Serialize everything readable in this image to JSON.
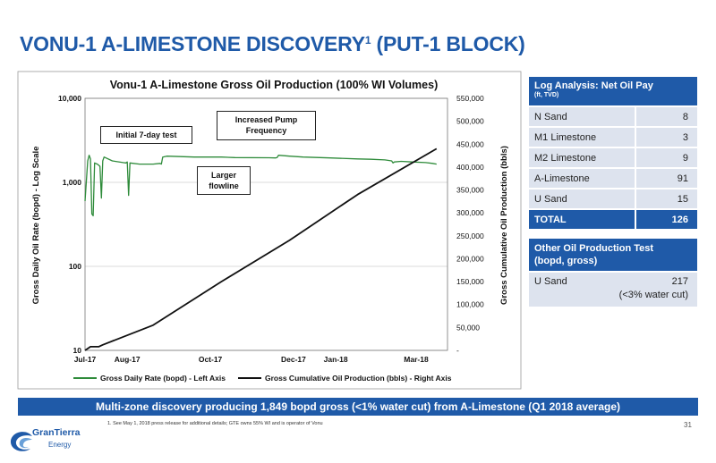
{
  "slide": {
    "title": "VONU-1 A-LIMESTONE DISCOVERY",
    "title_sup": "1",
    "title_tail": " (PUT-1 BLOCK)",
    "banner": "Multi-zone discovery producing 1,849 bopd gross (<1% water cut) from A-Limestone (Q1 2018 average)",
    "footnote": "1.  See May 1, 2018 press release for additional details; GTE owns 55% WI and is operator of Vonu",
    "page_number": "31",
    "logo_text": "GranTierra",
    "logo_sub": "Energy",
    "brand_color": "#1f5aa8"
  },
  "log_table": {
    "header": "Log Analysis: Net Oil Pay",
    "subheader": "(ft, TVD)",
    "rows": [
      {
        "name": "N Sand",
        "value": "8"
      },
      {
        "name": "M1 Limestone",
        "value": "3"
      },
      {
        "name": "M2 Limestone",
        "value": "9"
      },
      {
        "name": "A-Limestone",
        "value": "91"
      },
      {
        "name": "U Sand",
        "value": "15"
      }
    ],
    "total_label": "TOTAL",
    "total_value": "126"
  },
  "test_table": {
    "header_line1": "Other Oil Production Test",
    "header_line2": "(bopd, gross)",
    "row_name": "U Sand",
    "row_value": "217",
    "row_note": "(<3% water cut)"
  },
  "annotations": {
    "initial": "Initial 7-day test",
    "pump_line1": "Increased Pump",
    "pump_line2": "Frequency",
    "flow_line1": "Larger",
    "flow_line2": "flowline"
  },
  "chart_data": {
    "type": "line",
    "title": "Vonu-1 A-Limestone Gross Oil Production (100% WI Volumes)",
    "ylabel_left": "Gross Daily Oil Rate (bopd) - Log Scale",
    "ylabel_right": "Gross Cumulative Oil Production (bbls)",
    "left_scale": "log",
    "left_ylim": [
      10,
      10000
    ],
    "left_ticks": [
      "10",
      "100",
      "1,000",
      "10,000"
    ],
    "right_ylim": [
      0,
      550000
    ],
    "right_ticks": [
      "-",
      "50,000",
      "100,000",
      "150,000",
      "200,000",
      "250,000",
      "300,000",
      "350,000",
      "400,000",
      "450,000",
      "500,000",
      "550,000"
    ],
    "x_ticks": [
      "Jul-17",
      "Aug-17",
      "Oct-17",
      "Dec-17",
      "Jan-18",
      "Mar-18"
    ],
    "x_tick_days": [
      0,
      31,
      92,
      153,
      184,
      243
    ],
    "grid": true,
    "legend_position": "bottom",
    "series": [
      {
        "name": "Gross Daily Rate (bopd) - Left Axis",
        "axis": "left",
        "color": "#2e8b3a",
        "points": [
          [
            0,
            600
          ],
          [
            2,
            1800
          ],
          [
            3,
            2100
          ],
          [
            4,
            1900
          ],
          [
            5,
            420
          ],
          [
            6,
            400
          ],
          [
            7,
            1700
          ],
          [
            9,
            1650
          ],
          [
            10,
            1600
          ],
          [
            11,
            1550
          ],
          [
            12,
            650
          ],
          [
            13,
            1800
          ],
          [
            14,
            2000
          ],
          [
            20,
            1800
          ],
          [
            28,
            1720
          ],
          [
            30,
            1700
          ],
          [
            31,
            1750
          ],
          [
            32,
            700
          ],
          [
            33,
            1700
          ],
          [
            40,
            1650
          ],
          [
            50,
            1650
          ],
          [
            55,
            1680
          ],
          [
            56,
            1650
          ],
          [
            57,
            2000
          ],
          [
            60,
            2050
          ],
          [
            80,
            2000
          ],
          [
            100,
            2000
          ],
          [
            110,
            1970
          ],
          [
            135,
            1960
          ],
          [
            140,
            1950
          ],
          [
            141,
            1980
          ],
          [
            142,
            2100
          ],
          [
            150,
            2050
          ],
          [
            160,
            2000
          ],
          [
            180,
            1950
          ],
          [
            200,
            1900
          ],
          [
            210,
            1880
          ],
          [
            220,
            1850
          ],
          [
            225,
            1800
          ],
          [
            226,
            1700
          ],
          [
            227,
            1750
          ],
          [
            232,
            1780
          ],
          [
            240,
            1750
          ],
          [
            250,
            1720
          ],
          [
            255,
            1680
          ],
          [
            258,
            1650
          ]
        ]
      },
      {
        "name": "Gross Cumulative Oil Production (bbls) - Right Axis",
        "axis": "right",
        "color": "#111111",
        "points": [
          [
            0,
            0
          ],
          [
            4,
            8000
          ],
          [
            10,
            8000
          ],
          [
            13,
            12000
          ],
          [
            50,
            55000
          ],
          [
            100,
            150000
          ],
          [
            150,
            240000
          ],
          [
            200,
            340000
          ],
          [
            258,
            440000
          ]
        ]
      }
    ]
  }
}
